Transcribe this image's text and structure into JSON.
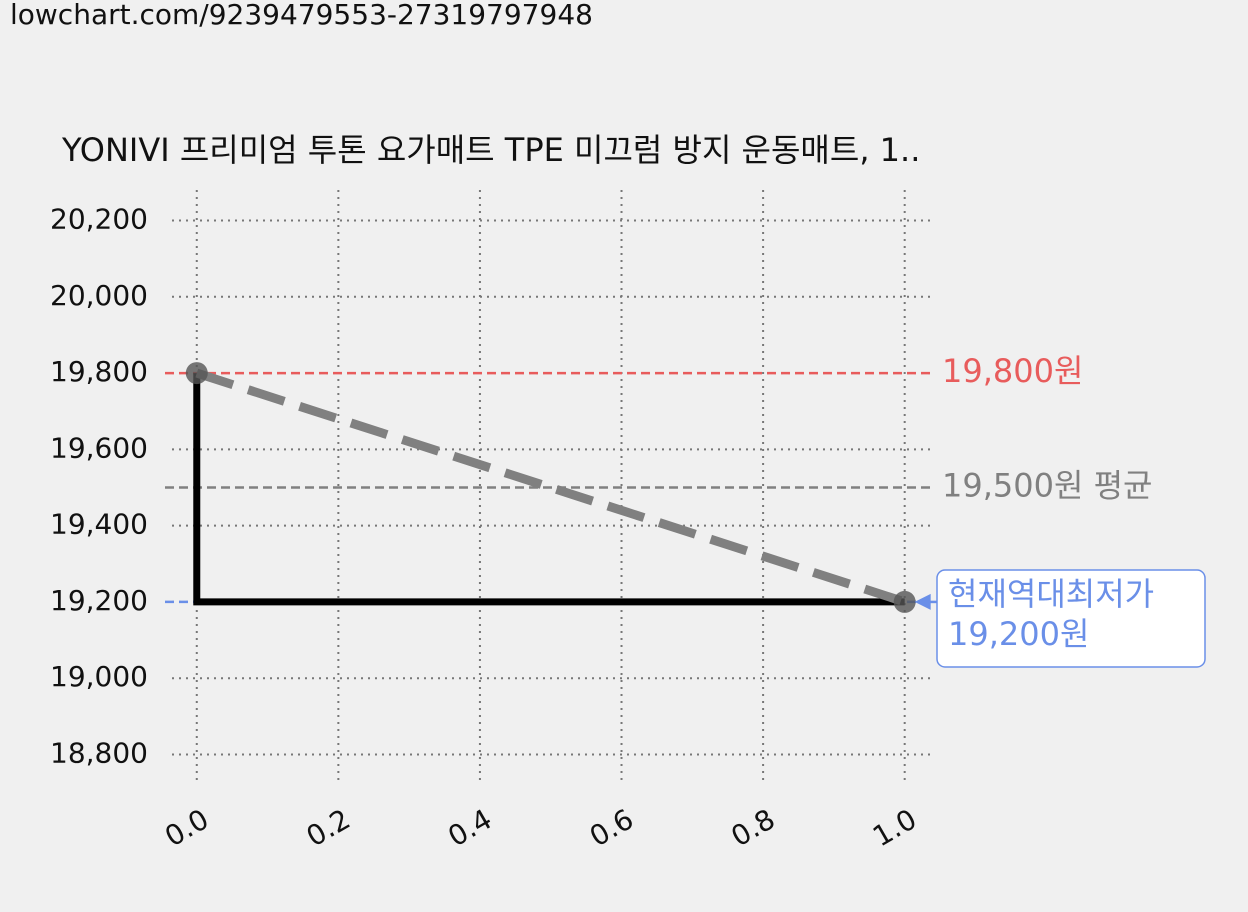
{
  "url": "lowchart.com/9239479553-27319797948",
  "chart_data": {
    "type": "line",
    "title": "YONIVI 프리미엄 투톤 요가매트 TPE 미끄럼 방지 운동매트, 1..",
    "x": [
      0,
      1
    ],
    "series": [
      {
        "color": "#000000",
        "values": [
          19800,
          19200
        ],
        "step": "pre"
      },
      {
        "color": "#808080",
        "values": [
          19800,
          19200
        ],
        "dashed": true,
        "markers": true
      }
    ],
    "xlim": [
      -0.035,
      1.04
    ],
    "ylim": [
      18720,
      20280
    ],
    "xticks": [
      {
        "value": 0,
        "label": "0.0"
      },
      {
        "value": 0.2,
        "label": "0.2"
      },
      {
        "value": 0.4,
        "label": "0.4"
      },
      {
        "value": 0.6,
        "label": "0.6"
      },
      {
        "value": 0.8,
        "label": "0.8"
      },
      {
        "value": 1,
        "label": "1.0"
      }
    ],
    "yticks": [
      {
        "value": 18800,
        "label": "18,800"
      },
      {
        "value": 19000,
        "label": "19,000"
      },
      {
        "value": 19200,
        "label": "19,200"
      },
      {
        "value": 19400,
        "label": "19,400"
      },
      {
        "value": 19600,
        "label": "19,600"
      },
      {
        "value": 19800,
        "label": "19,800"
      },
      {
        "value": 20000,
        "label": "20,000"
      },
      {
        "value": 20200,
        "label": "20,200"
      }
    ],
    "grid": true,
    "hlines": [
      {
        "value": 19800,
        "label": "19,800원",
        "color": "#e85c5c"
      },
      {
        "value": 19500,
        "label": "19,500원 평균",
        "color": "#808080"
      },
      {
        "value": 19200,
        "color": "#6a8fe8"
      }
    ],
    "annotation": {
      "x": 1,
      "y": 19200,
      "lines": [
        "현재역대최저가",
        "19,200원"
      ],
      "color": "#6a8fe8"
    }
  }
}
